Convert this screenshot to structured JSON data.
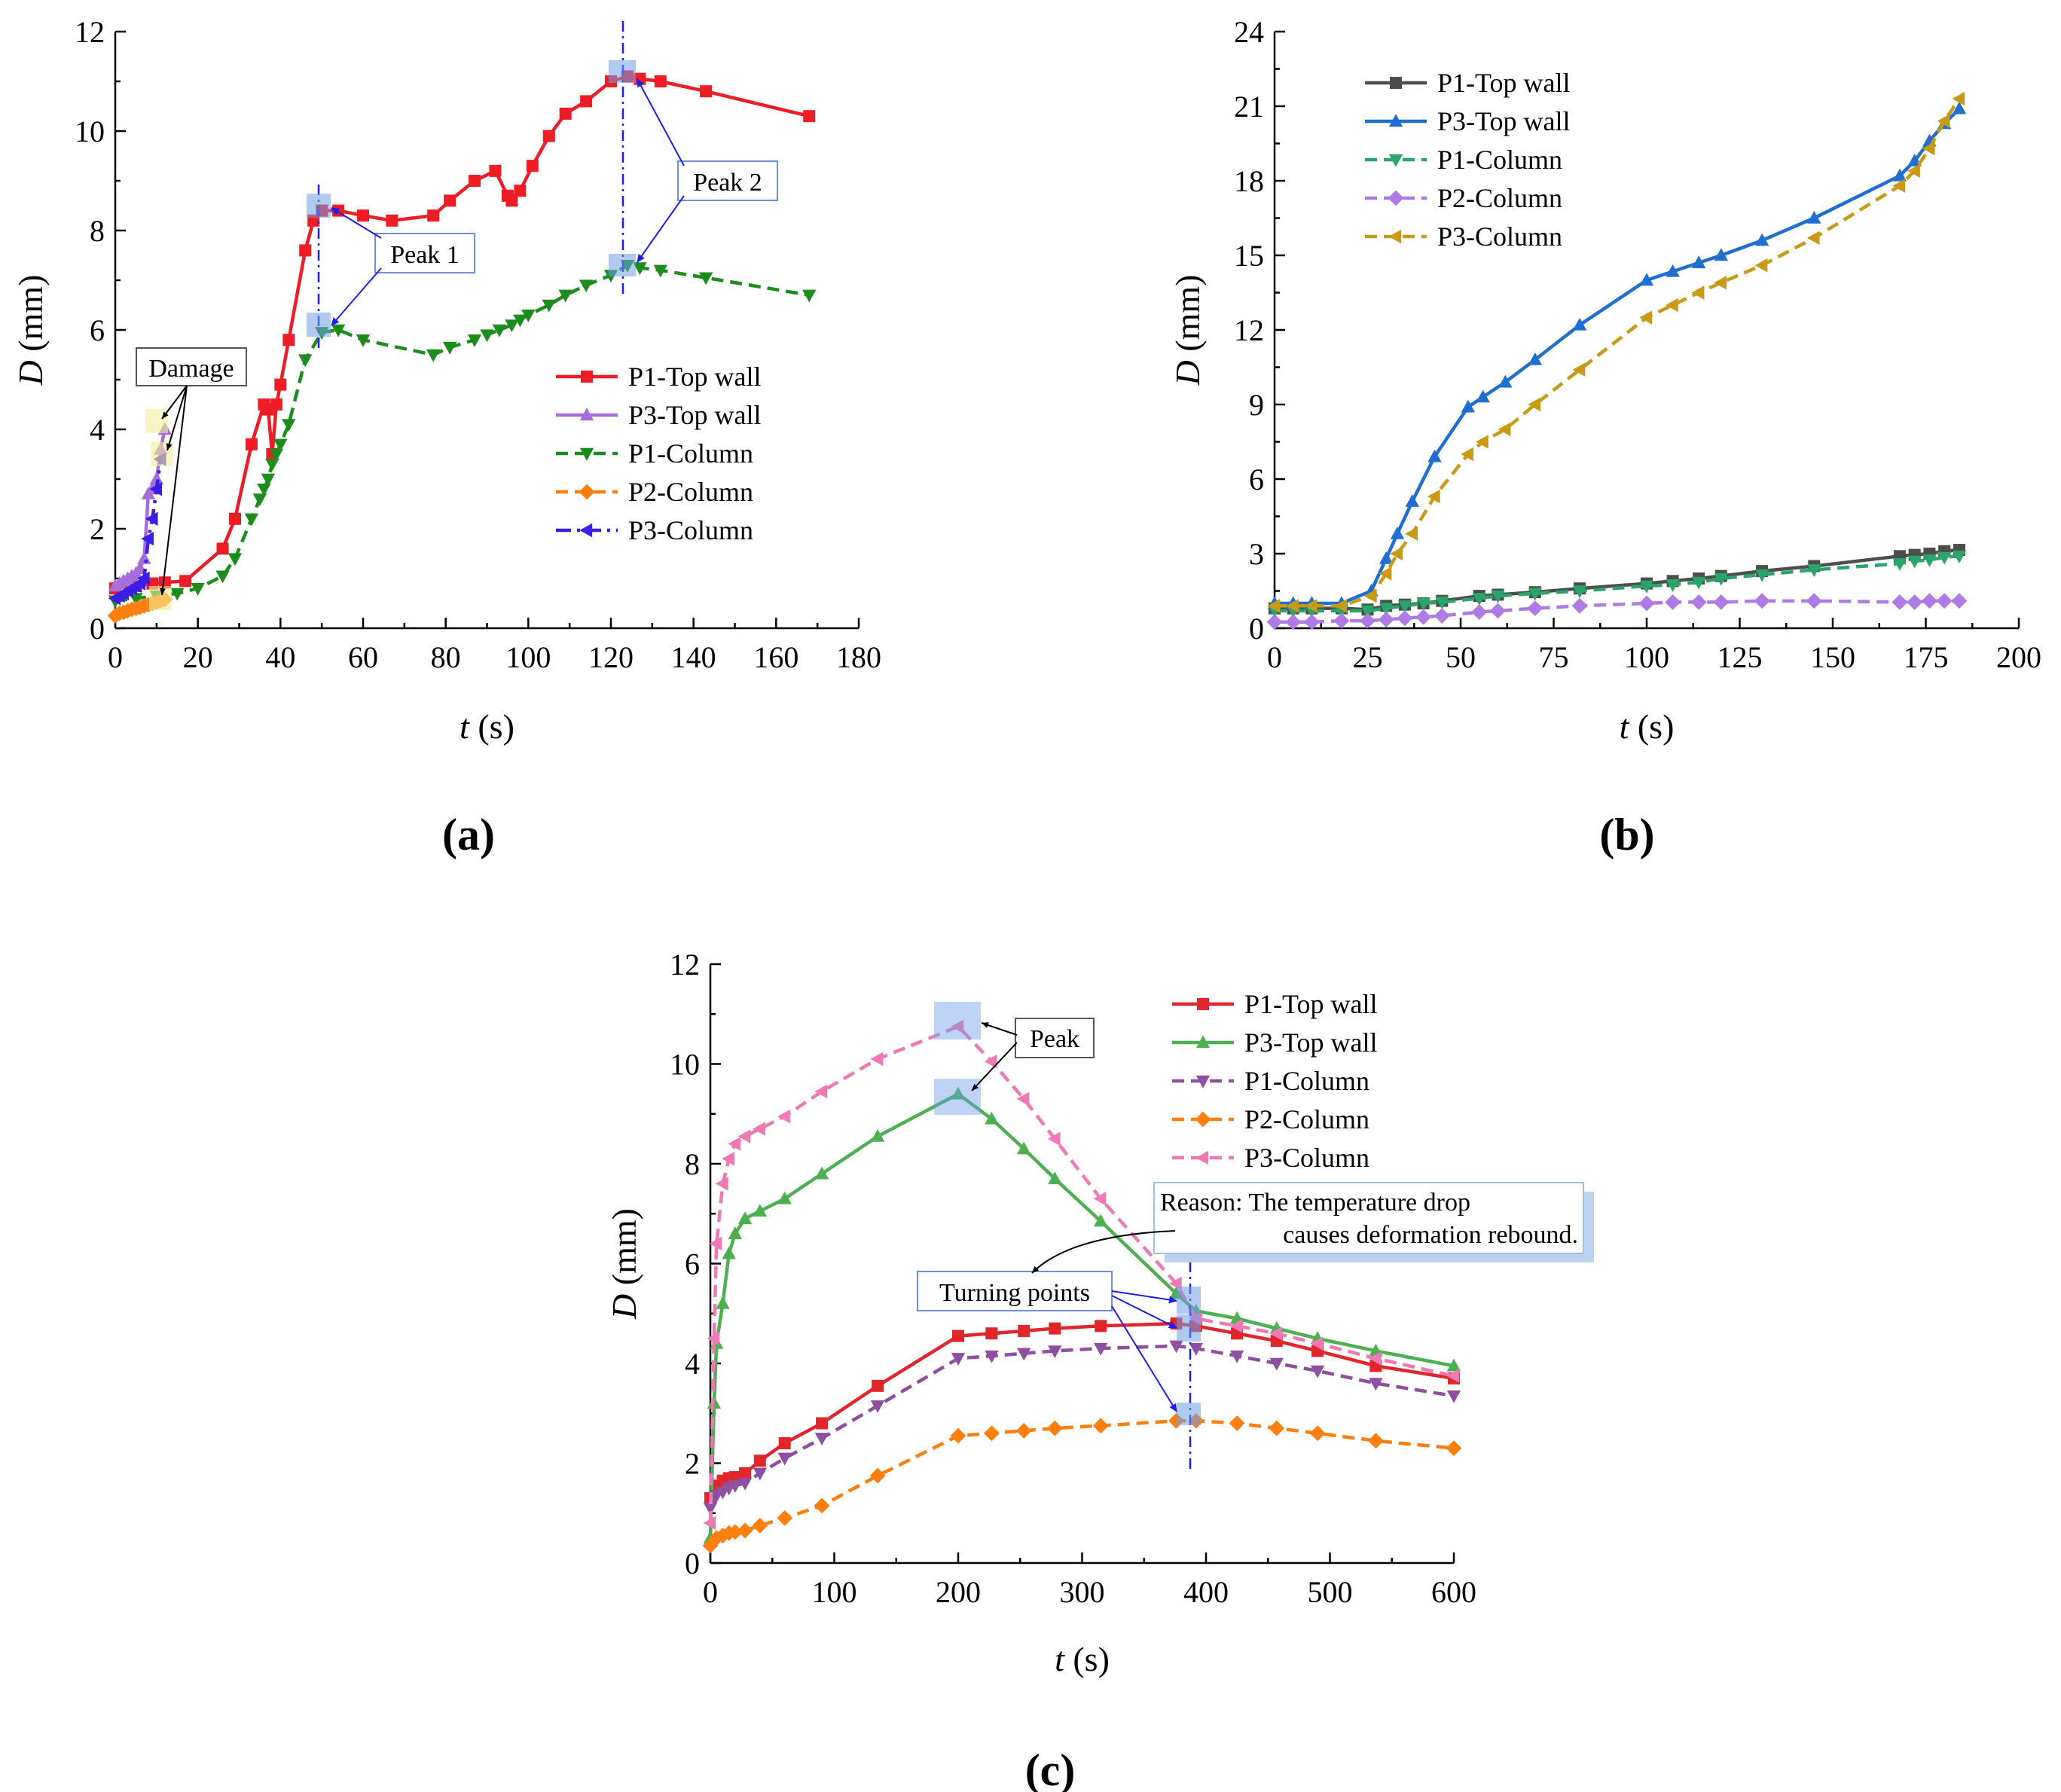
{
  "figure": {
    "colors": {
      "red": "#ee1c25",
      "violet_light": "#a66ddb",
      "green_dark": "#1c8c1c",
      "orange": "#ff7f0e",
      "blue_violet": "#3b1ee6",
      "gray_dark": "#4d4d4d",
      "blue": "#1f6fd1",
      "teal_green": "#2aa56a",
      "lilac": "#b07ae6",
      "gold": "#c99a16",
      "red_c": "#e0262b",
      "green_c": "#4caf50",
      "purple_c": "#8e4fa3",
      "orange_c": "#ff7f0e",
      "pink_c": "#f078b4",
      "guide_blue": "#1d1df0",
      "highlight_blue": "#6f9ee8",
      "highlight_yellow": "#f3ef9a"
    }
  },
  "chart_data": [
    {
      "id": "a",
      "type": "line",
      "panel_label": "(a)",
      "xlabel": {
        "var": "t",
        "unit": " (s)"
      },
      "ylabel": {
        "var": "D",
        "unit": " (mm)"
      },
      "xlim": [
        0,
        180
      ],
      "ylim": [
        0,
        12
      ],
      "xticks": [
        "0",
        "20",
        "40",
        "60",
        "80",
        "100",
        "120",
        "140",
        "160",
        "180"
      ],
      "yticks": [
        "0",
        "2",
        "4",
        "6",
        "8",
        "10",
        "12"
      ],
      "grid": false,
      "legend_position": "right-center",
      "series": [
        {
          "name": "P1-Top wall",
          "color": "#ee1c25",
          "dash": "solid",
          "marker": "square",
          "x": [
            0,
            5,
            9,
            12,
            17,
            26,
            29,
            33,
            36,
            37,
            38,
            39,
            40,
            42,
            46,
            48,
            50,
            54,
            60,
            67,
            77,
            81,
            87,
            92,
            95,
            96,
            98,
            101,
            105,
            109,
            114,
            120,
            124,
            127,
            132,
            143,
            168
          ],
          "y": [
            0.8,
            0.85,
            0.9,
            0.92,
            0.95,
            1.6,
            2.2,
            3.7,
            4.5,
            4.4,
            3.5,
            4.5,
            4.9,
            5.8,
            7.6,
            8.2,
            8.4,
            8.4,
            8.3,
            8.2,
            8.3,
            8.6,
            9.0,
            9.2,
            8.7,
            8.6,
            8.8,
            9.3,
            9.9,
            10.35,
            10.6,
            11.0,
            11.1,
            11.05,
            11.0,
            10.8,
            10.3
          ]
        },
        {
          "name": "P3-Top wall",
          "color": "#a66ddb",
          "dash": "solid",
          "marker": "triangle-up",
          "x": [
            0,
            1,
            2,
            3,
            4,
            5,
            6,
            7,
            8,
            9,
            10,
            11,
            12
          ],
          "y": [
            0.85,
            0.9,
            0.95,
            1.0,
            1.05,
            1.1,
            1.2,
            1.4,
            2.7,
            2.8,
            3.0,
            3.6,
            4.0
          ]
        },
        {
          "name": "P1-Column",
          "color": "#1c8c1c",
          "dash": "dashed",
          "marker": "triangle-down",
          "x": [
            0,
            5,
            10,
            15,
            20,
            26,
            29,
            33,
            35,
            36,
            37,
            38,
            39,
            40,
            42,
            46,
            50,
            54,
            60,
            77,
            81,
            87,
            90,
            93,
            96,
            98,
            100,
            105,
            109,
            114,
            120,
            124,
            127,
            132,
            143,
            168
          ],
          "y": [
            0.55,
            0.6,
            0.65,
            0.7,
            0.8,
            1.05,
            1.4,
            2.2,
            2.6,
            2.8,
            3.0,
            3.3,
            3.5,
            3.7,
            4.1,
            5.4,
            5.95,
            6.0,
            5.8,
            5.5,
            5.65,
            5.8,
            5.9,
            6.0,
            6.1,
            6.2,
            6.3,
            6.5,
            6.7,
            6.9,
            7.1,
            7.3,
            7.25,
            7.2,
            7.05,
            6.7
          ]
        },
        {
          "name": "P2-Column",
          "color": "#ff7f0e",
          "dash": "dashed",
          "marker": "diamond",
          "x": [
            0,
            1,
            2,
            3,
            4,
            5,
            6,
            7,
            8,
            9,
            10,
            11,
            12
          ],
          "y": [
            0.25,
            0.3,
            0.32,
            0.35,
            0.38,
            0.4,
            0.42,
            0.45,
            0.47,
            0.5,
            0.52,
            0.55,
            0.58
          ]
        },
        {
          "name": "P3-Column",
          "color": "#3b1ee6",
          "dash": "dashdot",
          "marker": "triangle-left",
          "x": [
            0,
            1,
            2,
            3,
            4,
            5,
            6,
            7,
            8,
            9,
            10,
            11
          ],
          "y": [
            0.6,
            0.65,
            0.7,
            0.75,
            0.8,
            0.85,
            0.9,
            1.0,
            1.8,
            2.2,
            2.8,
            3.4
          ]
        }
      ],
      "annotations": [
        {
          "text": "Damage"
        },
        {
          "text": "Peak 1"
        },
        {
          "text": "Peak 2"
        }
      ]
    },
    {
      "id": "b",
      "type": "line",
      "panel_label": "(b)",
      "xlabel": {
        "var": "t",
        "unit": " (s)"
      },
      "ylabel": {
        "var": "D",
        "unit": " (mm)"
      },
      "xlim": [
        0,
        200
      ],
      "ylim": [
        0,
        24
      ],
      "xticks": [
        "0",
        "25",
        "50",
        "75",
        "100",
        "125",
        "150",
        "175",
        "200"
      ],
      "yticks": [
        "0",
        "3",
        "6",
        "9",
        "12",
        "15",
        "18",
        "21",
        "24"
      ],
      "grid": false,
      "legend_position": "top-left",
      "series": [
        {
          "name": "P1-Top wall",
          "color": "#4d4d4d",
          "dash": "solid",
          "marker": "square",
          "x": [
            0,
            5,
            10,
            18,
            25,
            30,
            35,
            40,
            45,
            55,
            60,
            70,
            82,
            100,
            107,
            114,
            120,
            131,
            145,
            168,
            172,
            176,
            180,
            184
          ],
          "y": [
            0.8,
            0.8,
            0.8,
            0.8,
            0.75,
            0.9,
            0.95,
            1.0,
            1.1,
            1.3,
            1.35,
            1.45,
            1.6,
            1.8,
            1.9,
            2.0,
            2.1,
            2.3,
            2.5,
            2.9,
            2.95,
            3.0,
            3.1,
            3.15
          ]
        },
        {
          "name": "P3-Top wall",
          "color": "#1f6fd1",
          "dash": "solid",
          "marker": "triangle-up",
          "x": [
            0,
            5,
            10,
            18,
            26,
            30,
            33,
            37,
            43,
            52,
            56,
            62,
            70,
            82,
            100,
            107,
            114,
            120,
            131,
            145,
            168,
            172,
            176,
            180,
            184
          ],
          "y": [
            1.0,
            1.0,
            1.0,
            1.0,
            1.5,
            2.8,
            3.8,
            5.1,
            6.9,
            8.9,
            9.3,
            9.9,
            10.8,
            12.2,
            14.0,
            14.35,
            14.7,
            15.0,
            15.6,
            16.5,
            18.2,
            18.8,
            19.6,
            20.3,
            20.9
          ]
        },
        {
          "name": "P1-Column",
          "color": "#2aa56a",
          "dash": "dashed",
          "marker": "triangle-down",
          "x": [
            0,
            5,
            10,
            18,
            25,
            30,
            35,
            40,
            45,
            55,
            60,
            70,
            82,
            100,
            107,
            114,
            120,
            131,
            145,
            168,
            172,
            176,
            180,
            184
          ],
          "y": [
            0.7,
            0.7,
            0.7,
            0.7,
            0.7,
            0.8,
            0.9,
            1.0,
            1.05,
            1.2,
            1.3,
            1.4,
            1.5,
            1.7,
            1.75,
            1.85,
            2.0,
            2.15,
            2.35,
            2.6,
            2.7,
            2.75,
            2.85,
            2.9
          ]
        },
        {
          "name": "P2-Column",
          "color": "#b07ae6",
          "dash": "dashed",
          "marker": "diamond",
          "x": [
            0,
            5,
            10,
            18,
            25,
            30,
            35,
            40,
            45,
            55,
            60,
            70,
            82,
            100,
            107,
            114,
            120,
            131,
            145,
            168,
            172,
            176,
            180,
            184
          ],
          "y": [
            0.25,
            0.25,
            0.25,
            0.3,
            0.3,
            0.35,
            0.4,
            0.45,
            0.5,
            0.65,
            0.7,
            0.8,
            0.9,
            1.0,
            1.05,
            1.05,
            1.05,
            1.1,
            1.1,
            1.05,
            1.05,
            1.1,
            1.1,
            1.1
          ]
        },
        {
          "name": "P3-Column",
          "color": "#c99a16",
          "dash": "dashed",
          "marker": "triangle-left",
          "x": [
            0,
            5,
            10,
            18,
            26,
            30,
            33,
            37,
            43,
            52,
            56,
            62,
            70,
            82,
            100,
            107,
            114,
            120,
            131,
            145,
            168,
            172,
            176,
            180,
            184
          ],
          "y": [
            0.9,
            0.9,
            0.9,
            0.9,
            1.3,
            2.2,
            3.0,
            3.8,
            5.3,
            7.0,
            7.5,
            8.0,
            9.0,
            10.4,
            12.5,
            13.0,
            13.5,
            13.9,
            14.6,
            15.7,
            17.8,
            18.4,
            19.3,
            20.4,
            21.3
          ]
        }
      ],
      "annotations": []
    },
    {
      "id": "c",
      "type": "line",
      "panel_label": "(c)",
      "xlabel": {
        "var": "t",
        "unit": " (s)"
      },
      "ylabel": {
        "var": "D",
        "unit": " (mm)"
      },
      "xlim": [
        0,
        600
      ],
      "ylim": [
        0,
        12
      ],
      "xticks": [
        "0",
        "100",
        "200",
        "300",
        "400",
        "500",
        "600"
      ],
      "yticks": [
        "0",
        "2",
        "4",
        "6",
        "8",
        "10",
        "12"
      ],
      "grid": false,
      "legend_position": "top-right",
      "series": [
        {
          "name": "P1-Top wall",
          "color": "#e0262b",
          "dash": "solid",
          "marker": "square",
          "x": [
            0,
            5,
            10,
            15,
            20,
            28,
            40,
            60,
            90,
            135,
            200,
            227,
            253,
            278,
            315,
            376,
            392,
            425,
            457,
            490,
            537,
            600
          ],
          "y": [
            1.3,
            1.55,
            1.65,
            1.7,
            1.72,
            1.8,
            2.05,
            2.4,
            2.8,
            3.55,
            4.55,
            4.6,
            4.65,
            4.7,
            4.75,
            4.8,
            4.75,
            4.6,
            4.45,
            4.25,
            3.95,
            3.7
          ]
        },
        {
          "name": "P3-Top wall",
          "color": "#4caf50",
          "dash": "solid",
          "marker": "triangle-up",
          "x": [
            0,
            3,
            5,
            10,
            15,
            20,
            28,
            40,
            60,
            90,
            135,
            200,
            227,
            253,
            278,
            315,
            376,
            392,
            425,
            457,
            490,
            537,
            600
          ],
          "y": [
            0.5,
            3.2,
            4.4,
            5.2,
            6.2,
            6.6,
            6.9,
            7.05,
            7.3,
            7.8,
            8.55,
            9.4,
            8.9,
            8.3,
            7.7,
            6.85,
            5.4,
            5.05,
            4.9,
            4.7,
            4.5,
            4.25,
            3.95
          ]
        },
        {
          "name": "P1-Column",
          "color": "#8e4fa3",
          "dash": "dashed",
          "marker": "triangle-down",
          "x": [
            0,
            5,
            10,
            15,
            20,
            28,
            40,
            60,
            90,
            135,
            200,
            227,
            253,
            278,
            315,
            376,
            392,
            425,
            457,
            490,
            537,
            600
          ],
          "y": [
            1.1,
            1.35,
            1.42,
            1.5,
            1.55,
            1.6,
            1.8,
            2.1,
            2.5,
            3.15,
            4.1,
            4.15,
            4.2,
            4.25,
            4.3,
            4.35,
            4.3,
            4.15,
            4.0,
            3.85,
            3.6,
            3.35
          ]
        },
        {
          "name": "P2-Column",
          "color": "#ff7f0e",
          "dash": "dashed",
          "marker": "diamond",
          "x": [
            0,
            5,
            10,
            15,
            20,
            28,
            40,
            60,
            90,
            135,
            200,
            227,
            253,
            278,
            315,
            376,
            392,
            425,
            457,
            490,
            537,
            600
          ],
          "y": [
            0.35,
            0.5,
            0.55,
            0.6,
            0.62,
            0.65,
            0.75,
            0.9,
            1.15,
            1.75,
            2.55,
            2.6,
            2.65,
            2.7,
            2.75,
            2.85,
            2.85,
            2.8,
            2.7,
            2.6,
            2.45,
            2.3
          ]
        },
        {
          "name": "P3-Column",
          "color": "#f078b4",
          "dash": "dashed",
          "marker": "triangle-left",
          "x": [
            0,
            3,
            5,
            10,
            15,
            20,
            28,
            40,
            60,
            90,
            135,
            200,
            227,
            253,
            278,
            315,
            376,
            392,
            425,
            457,
            490,
            537,
            600
          ],
          "y": [
            0.8,
            4.5,
            6.4,
            7.6,
            8.1,
            8.4,
            8.55,
            8.7,
            8.95,
            9.45,
            10.1,
            10.75,
            10.05,
            9.3,
            8.5,
            7.3,
            5.6,
            4.9,
            4.75,
            4.6,
            4.4,
            4.1,
            3.75
          ]
        }
      ],
      "annotations": [
        {
          "text": "Peak"
        },
        {
          "text": "Turning points"
        },
        {
          "text": "Reason: The temperature drop"
        },
        {
          "text": "causes deformation rebound."
        }
      ]
    }
  ]
}
